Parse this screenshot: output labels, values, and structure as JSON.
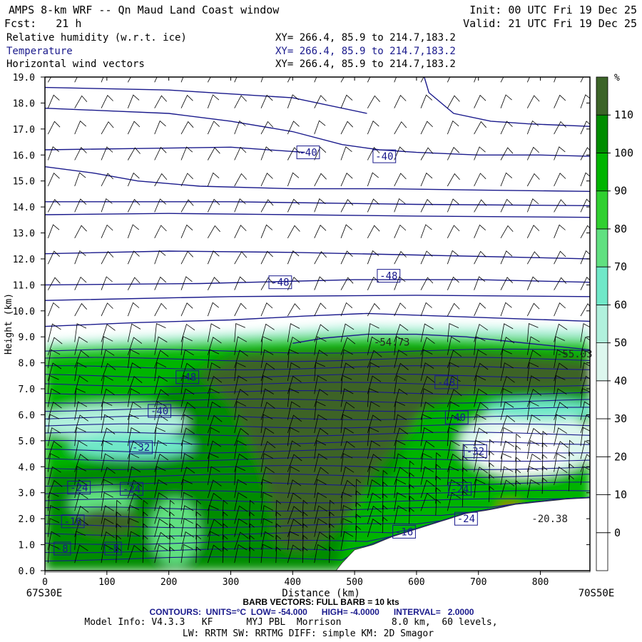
{
  "header": {
    "title": "AMPS 8-km WRF -- Qn Maud Land Coast window",
    "forecast": "Fcst:   21 h",
    "init": "Init: 00 UTC Fri 19 Dec 25",
    "valid": "Valid: 21 UTC Fri 19 Dec 25",
    "fields": [
      {
        "name": "Relative humidity (w.r.t. ice)",
        "xy": "XY= 266.4, 85.9 to 214.7,183.2",
        "color": "#000000"
      },
      {
        "name": "Temperature",
        "xy": "XY= 266.4, 85.9 to 214.7,183.2",
        "color": "#1a1a8c"
      },
      {
        "name": "Horizontal wind vectors",
        "xy": "XY= 266.4, 85.9 to 214.7,183.2",
        "color": "#000000"
      }
    ]
  },
  "footer": {
    "start_label": "67S30E",
    "end_label": "70S50E",
    "barb": "BARB VECTORS:  FULL BARB = 10 kts",
    "contours": "CONTOURS:  UNITS=°C  LOW= -54.000      HIGH= -4.0000      INTERVAL=   2.0000",
    "model1": "Model Info: V4.3.3   KF      MYJ PBL  Morrison         8.0 km,  60 levels,",
    "model2": "LW: RRTM SW: RRTMG   DIFF: simple KM: 2D Smagor"
  },
  "colors": {
    "temperature": "#1a1a8c",
    "terrain": "#ffffff",
    "rh_bins": [
      "#ffffff",
      "#ffffff",
      "#ffffff",
      "#ffffff",
      "#ffffff",
      "#ddf7ee",
      "#b0f0dc",
      "#70e8c8",
      "#60e080",
      "#30d030",
      "#00b400",
      "#008c00",
      "#3c6428",
      "#cc2200"
    ]
  },
  "chart_data": {
    "type": "heatmap",
    "xlabel": "Distance (km)",
    "ylabel": "Height (km)",
    "xlim": [
      0,
      880
    ],
    "ylim": [
      0,
      19
    ],
    "x_ticks": [
      0,
      100,
      200,
      300,
      400,
      500,
      600,
      700,
      800
    ],
    "y_ticks": [
      "0.0",
      "1.0",
      "2.0",
      "3.0",
      "4.0",
      "5.0",
      "6.0",
      "7.0",
      "8.0",
      "9.0",
      "10.0",
      "11.0",
      "12.0",
      "13.0",
      "14.0",
      "15.0",
      "16.0",
      "17.0",
      "18.0",
      "19.0"
    ],
    "colorbar": {
      "unit": "%",
      "labels": [
        "0",
        "10",
        "20",
        "30",
        "40",
        "50",
        "60",
        "70",
        "80",
        "90",
        "100",
        "110"
      ],
      "bins": [
        -10,
        0,
        10,
        20,
        30,
        40,
        50,
        60,
        70,
        80,
        90,
        100,
        110,
        120
      ]
    },
    "terrain_km": [
      [
        0,
        0.0
      ],
      [
        470,
        0.0
      ],
      [
        480,
        0.3
      ],
      [
        500,
        0.8
      ],
      [
        530,
        1.0
      ],
      [
        560,
        1.3
      ],
      [
        600,
        1.6
      ],
      [
        640,
        1.9
      ],
      [
        680,
        2.2
      ],
      [
        720,
        2.35
      ],
      [
        760,
        2.55
      ],
      [
        800,
        2.65
      ],
      [
        840,
        2.75
      ],
      [
        880,
        2.8
      ]
    ],
    "temperature_contour_labels": [
      {
        "text": "-40",
        "x": 425,
        "z": 16.1
      },
      {
        "text": "-40",
        "x": 548,
        "z": 15.95
      },
      {
        "text": "-48",
        "x": 380,
        "z": 11.1
      },
      {
        "text": "-48",
        "x": 555,
        "z": 11.35
      },
      {
        "text": "-54.73",
        "x": 560,
        "z": 8.8
      },
      {
        "text": "-55.03",
        "x": 855,
        "z": 8.35
      },
      {
        "text": "-48",
        "x": 230,
        "z": 7.45
      },
      {
        "text": "-48",
        "x": 648,
        "z": 7.25
      },
      {
        "text": "-40",
        "x": 185,
        "z": 6.15
      },
      {
        "text": "-40",
        "x": 665,
        "z": 5.9
      },
      {
        "text": "-32",
        "x": 155,
        "z": 4.75
      },
      {
        "text": "-32",
        "x": 695,
        "z": 4.6
      },
      {
        "text": "-24",
        "x": 55,
        "z": 3.2
      },
      {
        "text": "-24",
        "x": 140,
        "z": 3.15
      },
      {
        "text": "-24",
        "x": 670,
        "z": 3.15
      },
      {
        "text": "-24",
        "x": 680,
        "z": 2.0
      },
      {
        "text": "-16",
        "x": 45,
        "z": 1.9
      },
      {
        "text": "-16",
        "x": 580,
        "z": 1.5
      },
      {
        "text": "-20.38",
        "x": 815,
        "z": 2.0
      },
      {
        "text": "-8",
        "x": 28,
        "z": 0.85
      },
      {
        "text": "-8",
        "x": 110,
        "z": 0.85
      }
    ]
  }
}
